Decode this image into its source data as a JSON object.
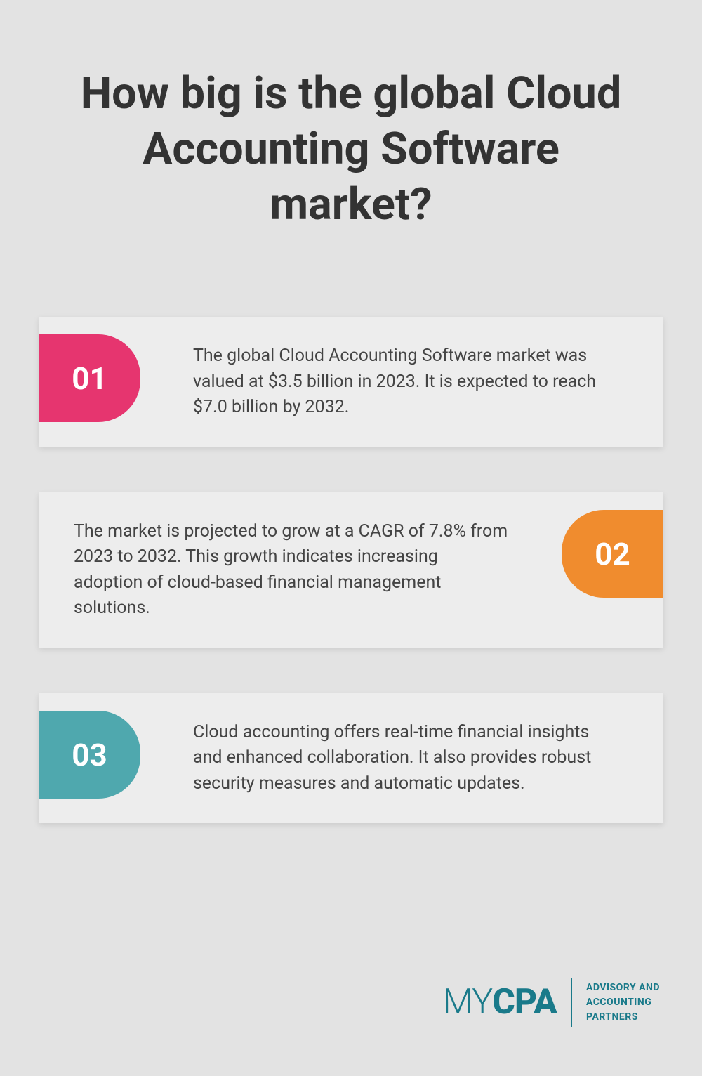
{
  "title": "How big is the global Cloud Accounting Software market?",
  "cards": [
    {
      "number": "01",
      "text": "The global Cloud Accounting Software market was valued at $3.5 billion in 2023. It is expected to reach $7.0 billion by 2032.",
      "badge_color": "#e6356f",
      "position": "left"
    },
    {
      "number": "02",
      "text": "The market is projected to grow at a CAGR of 7.8% from 2023 to 2032. This growth indicates increasing adoption of cloud-based financial management solutions.",
      "badge_color": "#f08c2e",
      "position": "right"
    },
    {
      "number": "03",
      "text": "Cloud accounting offers real-time financial insights and enhanced collaboration. It also provides robust security measures and automatic updates.",
      "badge_color": "#4fa8ae",
      "position": "left"
    }
  ],
  "logo": {
    "prefix": "MY",
    "main": "CPA",
    "tagline_line1": "ADVISORY AND",
    "tagline_line2": "ACCOUNTING",
    "tagline_line3": "PARTNERS"
  },
  "styles": {
    "background_color": "#e3e3e3",
    "card_background": "#ededed",
    "title_color": "#333333",
    "text_color": "#444444",
    "logo_color": "#1a7a8a",
    "title_fontsize": 63,
    "card_text_fontsize": 25,
    "badge_number_fontsize": 44
  }
}
